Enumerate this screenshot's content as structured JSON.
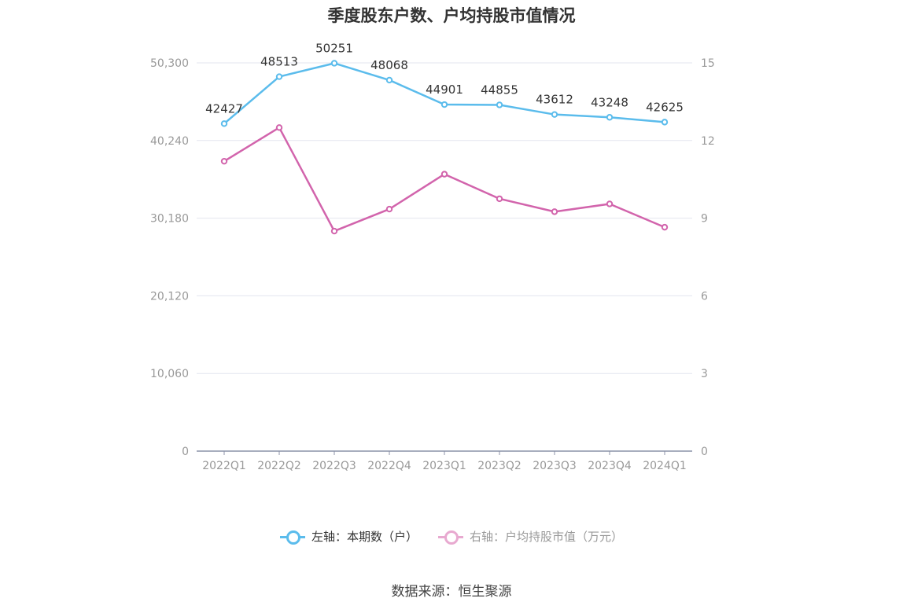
{
  "chart_data": {
    "type": "line",
    "title": "季度股东户数、户均持股市值情况",
    "categories": [
      "2022Q1",
      "2022Q2",
      "2022Q3",
      "2022Q4",
      "2023Q1",
      "2023Q2",
      "2023Q3",
      "2023Q4",
      "2024Q1"
    ],
    "y_left": {
      "ticks": [
        "0",
        "10,060",
        "20,120",
        "30,180",
        "40,240",
        "50,300"
      ],
      "ylim": [
        0,
        50300
      ]
    },
    "y_right": {
      "ticks": [
        "0",
        "3",
        "6",
        "9",
        "12",
        "15"
      ],
      "ylim": [
        0,
        15
      ]
    },
    "series": [
      {
        "name": "左轴：本期数（户）",
        "axis": "left",
        "color": "#5bbcec",
        "values": [
          42427,
          48513,
          50251,
          48068,
          44901,
          44855,
          43612,
          43248,
          42625
        ],
        "show_labels": true
      },
      {
        "name": "右轴：户均持股市值（万元）",
        "axis": "right",
        "color": "#d264ac",
        "values": [
          11.2,
          12.5,
          8.5,
          9.35,
          10.7,
          9.75,
          9.25,
          9.55,
          8.65
        ],
        "show_labels": false
      }
    ],
    "grid": true,
    "legend_position": "bottom"
  },
  "legend": [
    {
      "label": "左轴：本期数（户）",
      "color": "#5bbcec",
      "faded": false
    },
    {
      "label": "右轴：户均持股市值（万元）",
      "color": "#e8a9d0",
      "faded": true
    }
  ],
  "source": "数据来源：恒生聚源"
}
